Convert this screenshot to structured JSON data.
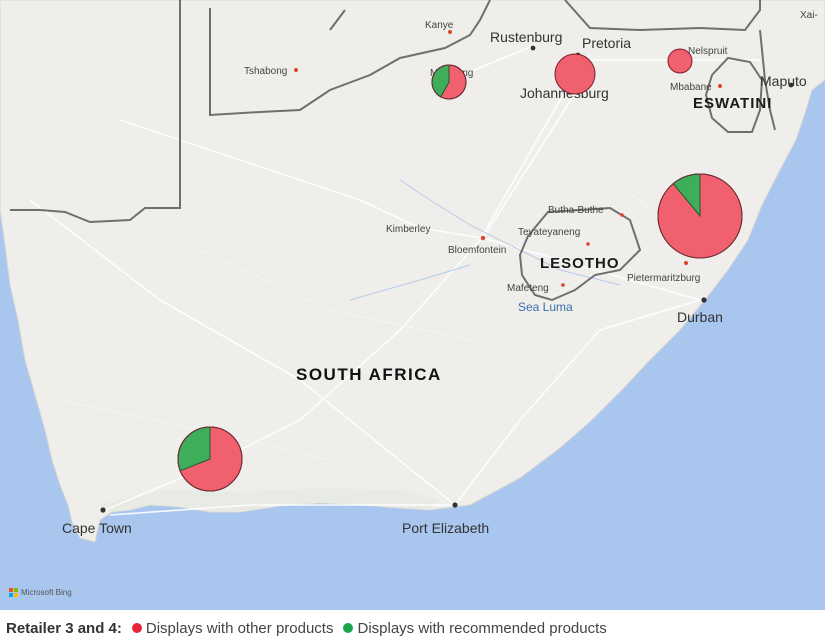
{
  "map": {
    "country_labels": {
      "south_africa": "SOUTH AFRICA",
      "lesotho": "LESOTHO",
      "eswatini": "ESWATINI"
    },
    "city_labels": {
      "kanye": "Kanye",
      "tshabong": "Tshabong",
      "mahikeng": "Mahikeng",
      "rustenburg": "Rustenburg",
      "pretoria": "Pretoria",
      "johannesburg": "Johannesburg",
      "nelspruit": "Nelspruit",
      "mbabane": "Mbabane",
      "maputo": "Maputo",
      "xai_xai": "Xai-",
      "kimberley": "Kimberley",
      "bloemfontein": "Bloemfontein",
      "butha_buthe": "Butha-Buthe",
      "teyateyaneng": "Teyateyaneng",
      "mafeteng": "Mafeteng",
      "pietermaritzburg": "Pietermaritzburg",
      "durban": "Durban",
      "cape_town": "Cape Town",
      "port_elizabeth": "Port Elizabeth"
    },
    "water_labels": {
      "sea_luma": "Sea Luma"
    },
    "attribution": "Microsoft Bing"
  },
  "legend": {
    "title": "Retailer 3 and 4:",
    "items": [
      {
        "label": "Displays with other products",
        "color": "#e8253a"
      },
      {
        "label": "Displays with recommended products",
        "color": "#1aa34a"
      }
    ]
  },
  "colors": {
    "other": "#f0606f",
    "recommended": "#3fae5a",
    "ocean": "#a9c6ef",
    "land": "#efeeeb"
  },
  "pie_markers": [
    {
      "location": "Mahikeng",
      "recommended_share": 0.42,
      "size_rank": "small"
    },
    {
      "location": "Johannesburg",
      "recommended_share": 0.0,
      "size_rank": "medium"
    },
    {
      "location": "Nelspruit",
      "recommended_share": 0.0,
      "size_rank": "small"
    },
    {
      "location": "Pietermaritzburg",
      "recommended_share": 0.11,
      "size_rank": "large"
    },
    {
      "location": "Western Cape",
      "recommended_share": 0.31,
      "size_rank": "medium-large"
    }
  ]
}
